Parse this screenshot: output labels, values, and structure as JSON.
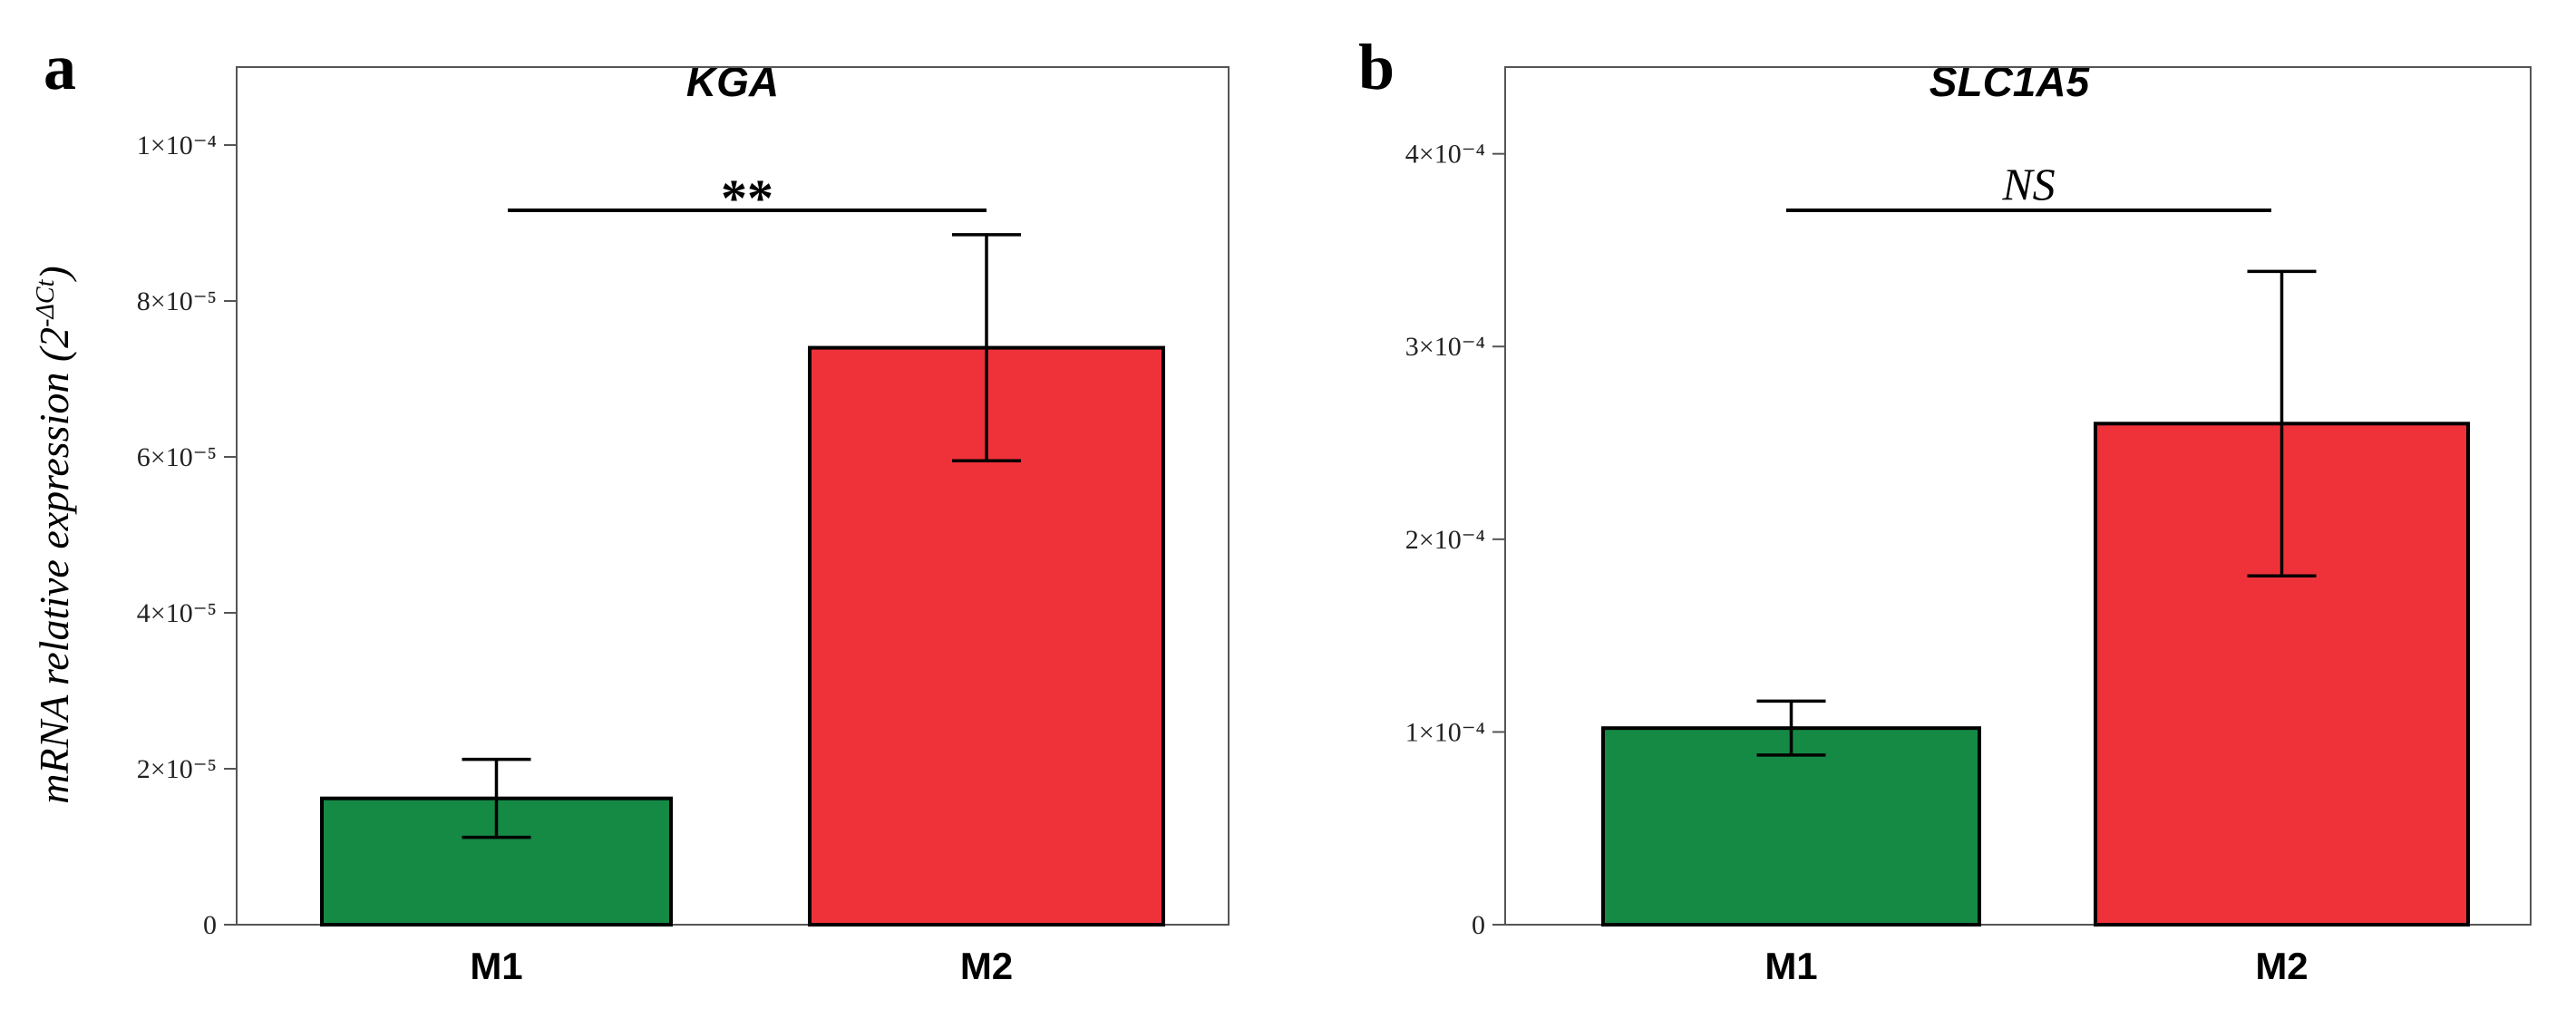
{
  "ylabel": "mRNA relative expression (2",
  "ylabel_superscript": "-ΔCt",
  "ylabel_close": ")",
  "colors": {
    "M1": "#158a45",
    "M2": "#ef323a"
  },
  "chart_data": [
    {
      "panel": "a",
      "type": "bar",
      "title": "KGA",
      "categories": [
        "M1",
        "M2"
      ],
      "values": [
        1.62e-05,
        7.4e-05
      ],
      "errors": [
        5e-06,
        1.45e-05
      ],
      "ylim": [
        0,
        0.00011
      ],
      "yticks": [
        0,
        2e-05,
        4e-05,
        6e-05,
        8e-05,
        0.0001
      ],
      "ytick_labels": [
        "0",
        "2×10⁻⁵",
        "4×10⁻⁵",
        "6×10⁻⁵",
        "8×10⁻⁵",
        "1×10⁻⁴"
      ],
      "significance": "**",
      "grid": false
    },
    {
      "panel": "b",
      "type": "bar",
      "title": "SLC1A5",
      "categories": [
        "M1",
        "M2"
      ],
      "values": [
        0.000102,
        0.00026
      ],
      "errors": [
        1.4e-05,
        7.9e-05
      ],
      "ylim": [
        0,
        0.000445
      ],
      "yticks": [
        0,
        0.0001,
        0.0002,
        0.0003,
        0.0004
      ],
      "ytick_labels": [
        "0",
        "1×10⁻⁴",
        "2×10⁻⁴",
        "3×10⁻⁴",
        "4×10⁻⁴"
      ],
      "significance": "NS",
      "grid": false
    }
  ]
}
